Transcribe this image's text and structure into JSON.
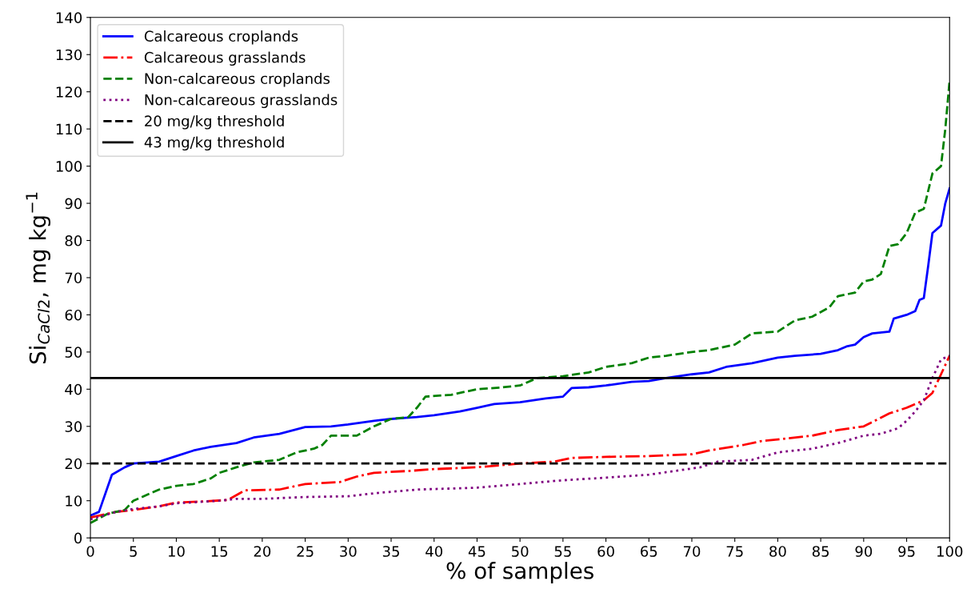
{
  "chart_data": {
    "type": "line",
    "xlabel": "% of samples",
    "ylabel": "Si$_{CaCl2}$, mg kg$^{−1}$",
    "xlim": [
      0,
      100
    ],
    "ylim": [
      0,
      140
    ],
    "xticks": [
      0,
      5,
      10,
      15,
      20,
      25,
      30,
      35,
      40,
      45,
      50,
      55,
      60,
      65,
      70,
      75,
      80,
      85,
      90,
      95,
      100
    ],
    "yticks": [
      0,
      10,
      20,
      30,
      40,
      50,
      60,
      70,
      80,
      90,
      100,
      110,
      120,
      130,
      140
    ],
    "grid": false,
    "legend": "top left",
    "series": [
      {
        "name": "Calcareous croplands",
        "color": "#0000ff",
        "line_style": "solid",
        "x": [
          0,
          1,
          2.5,
          4,
          5,
          8,
          10,
          12,
          14,
          17,
          19,
          22,
          25,
          28,
          30,
          33,
          35,
          38,
          40,
          43,
          45,
          47,
          50,
          53,
          55,
          56,
          58,
          60,
          63,
          65,
          67,
          70,
          72,
          74,
          77,
          80,
          82,
          85,
          87,
          88,
          89,
          90,
          91,
          93,
          93.5,
          95,
          96,
          96.5,
          97,
          97.5,
          98,
          99,
          99.5,
          100
        ],
        "values": [
          6,
          7,
          17,
          19,
          20,
          20.5,
          22,
          23.5,
          24.5,
          25.5,
          27,
          28,
          29.8,
          30,
          30.5,
          31.5,
          32,
          32.5,
          33,
          34,
          35,
          36,
          36.5,
          37.5,
          38,
          40.3,
          40.5,
          41,
          42,
          42.2,
          43,
          44,
          44.5,
          46,
          47,
          48.5,
          49,
          49.5,
          50.5,
          51.5,
          52,
          54,
          55,
          55.5,
          59,
          60,
          61,
          64,
          64.5,
          73,
          82,
          84,
          90,
          94
        ]
      },
      {
        "name": "Calcareous grasslands",
        "color": "#ff0000",
        "line_style": "dashdot",
        "x": [
          0,
          3,
          5,
          8,
          10,
          13,
          16,
          18,
          22,
          25,
          29,
          31,
          33,
          37,
          40,
          45,
          50,
          54,
          56,
          60,
          65,
          70,
          72,
          76,
          78,
          80,
          84,
          87,
          90,
          93,
          95,
          97,
          98,
          99,
          100
        ],
        "values": [
          5.5,
          7,
          7.5,
          8.5,
          9.5,
          9.8,
          10.2,
          12.8,
          13,
          14.5,
          15,
          16.5,
          17.5,
          18,
          18.5,
          19,
          20,
          20.5,
          21.5,
          21.8,
          22,
          22.5,
          23.5,
          25,
          26,
          26.5,
          27.5,
          29,
          30,
          33.5,
          35,
          37,
          39,
          44,
          49
        ]
      },
      {
        "name": "Non-calcareous croplands",
        "color": "#008000",
        "line_style": "dashed",
        "x": [
          0,
          2,
          4,
          5,
          7,
          8,
          10,
          12,
          14,
          15,
          17,
          19,
          22,
          24,
          26,
          27,
          28,
          31,
          33,
          35,
          37,
          38,
          39,
          42,
          45,
          48,
          50,
          52,
          55,
          58,
          60,
          63,
          65,
          67,
          70,
          72,
          75,
          77,
          80,
          81,
          82,
          84,
          86,
          87,
          89,
          90,
          91,
          92,
          93,
          94,
          95,
          96,
          97,
          98,
          99,
          99.5,
          100
        ],
        "values": [
          4,
          6.5,
          7.5,
          10,
          12,
          13,
          14,
          14.5,
          16,
          17.5,
          19,
          20.3,
          21,
          23,
          24,
          25,
          27.5,
          27.5,
          30,
          32,
          32.5,
          35,
          38,
          38.5,
          40,
          40.5,
          41,
          43,
          43.5,
          44.5,
          46,
          47,
          48.5,
          49,
          50,
          50.5,
          52,
          55,
          55.5,
          57,
          58.5,
          59.5,
          62,
          65,
          66,
          69,
          69.5,
          71,
          78.5,
          79,
          82,
          87.5,
          88.5,
          98,
          100,
          110,
          123
        ]
      },
      {
        "name": "Non-calcareous grasslands",
        "color": "#800080",
        "line_style": "dotted",
        "x": [
          0,
          3,
          5,
          8,
          10,
          15,
          17,
          20,
          25,
          30,
          33,
          38,
          45,
          50,
          55,
          60,
          65,
          68,
          71,
          73,
          77,
          80,
          84,
          87,
          90,
          92,
          94,
          95,
          96,
          97,
          98,
          99,
          100
        ],
        "values": [
          5,
          7,
          7.8,
          8.5,
          9.3,
          10,
          10.5,
          10.5,
          11,
          11.2,
          12,
          13,
          13.5,
          14.5,
          15.5,
          16.2,
          17,
          18,
          19,
          20.5,
          21,
          23,
          24,
          25.5,
          27.5,
          28,
          29.5,
          31.5,
          34,
          37,
          43,
          48,
          49
        ]
      }
    ],
    "ref_lines": [
      {
        "axis": "y",
        "value": 20,
        "label": "20 mg/kg threshold",
        "color": "#000000",
        "line_style": "dashed"
      },
      {
        "axis": "y",
        "value": 43,
        "label": "43 mg/kg threshold",
        "color": "#000000",
        "line_style": "solid"
      }
    ]
  }
}
